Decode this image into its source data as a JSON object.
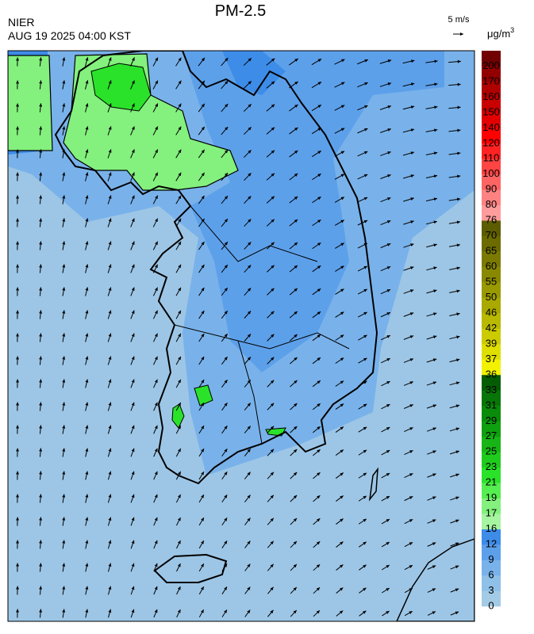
{
  "header": {
    "title": "PM-2.5",
    "agency": "NIER",
    "timestamp": "AUG 19 2025 04:00 KST",
    "wind_scale": "5 m/s",
    "unit": "μg/m",
    "unit_exponent": "3"
  },
  "legend": {
    "levels": [
      0,
      3,
      6,
      9,
      12,
      16,
      17,
      19,
      21,
      23,
      25,
      27,
      29,
      31,
      33,
      36,
      37,
      39,
      42,
      46,
      50,
      55,
      60,
      65,
      70,
      76,
      80,
      90,
      100,
      110,
      120,
      140,
      150,
      160,
      170,
      200
    ],
    "colors": [
      "#a3cbe6",
      "#8fc0e8",
      "#79b2ea",
      "#5da0ea",
      "#3d8ce8",
      "#a6f5a0",
      "#84f07e",
      "#55ee50",
      "#2be22a",
      "#1fcb1d",
      "#17b616",
      "#0fa00f",
      "#0a8c0a",
      "#077507",
      "#045d04",
      "#f2f200",
      "#dede00",
      "#cbcb00",
      "#b9b900",
      "#a9a900",
      "#999900",
      "#898900",
      "#7a7a00",
      "#6b6b00",
      "#5c5c00",
      "#ff9c9c",
      "#ff8282",
      "#ff6464",
      "#ff4444",
      "#ff2323",
      "#ff0000",
      "#e20000",
      "#c80000",
      "#b00000",
      "#930000",
      "#710000"
    ]
  }
}
